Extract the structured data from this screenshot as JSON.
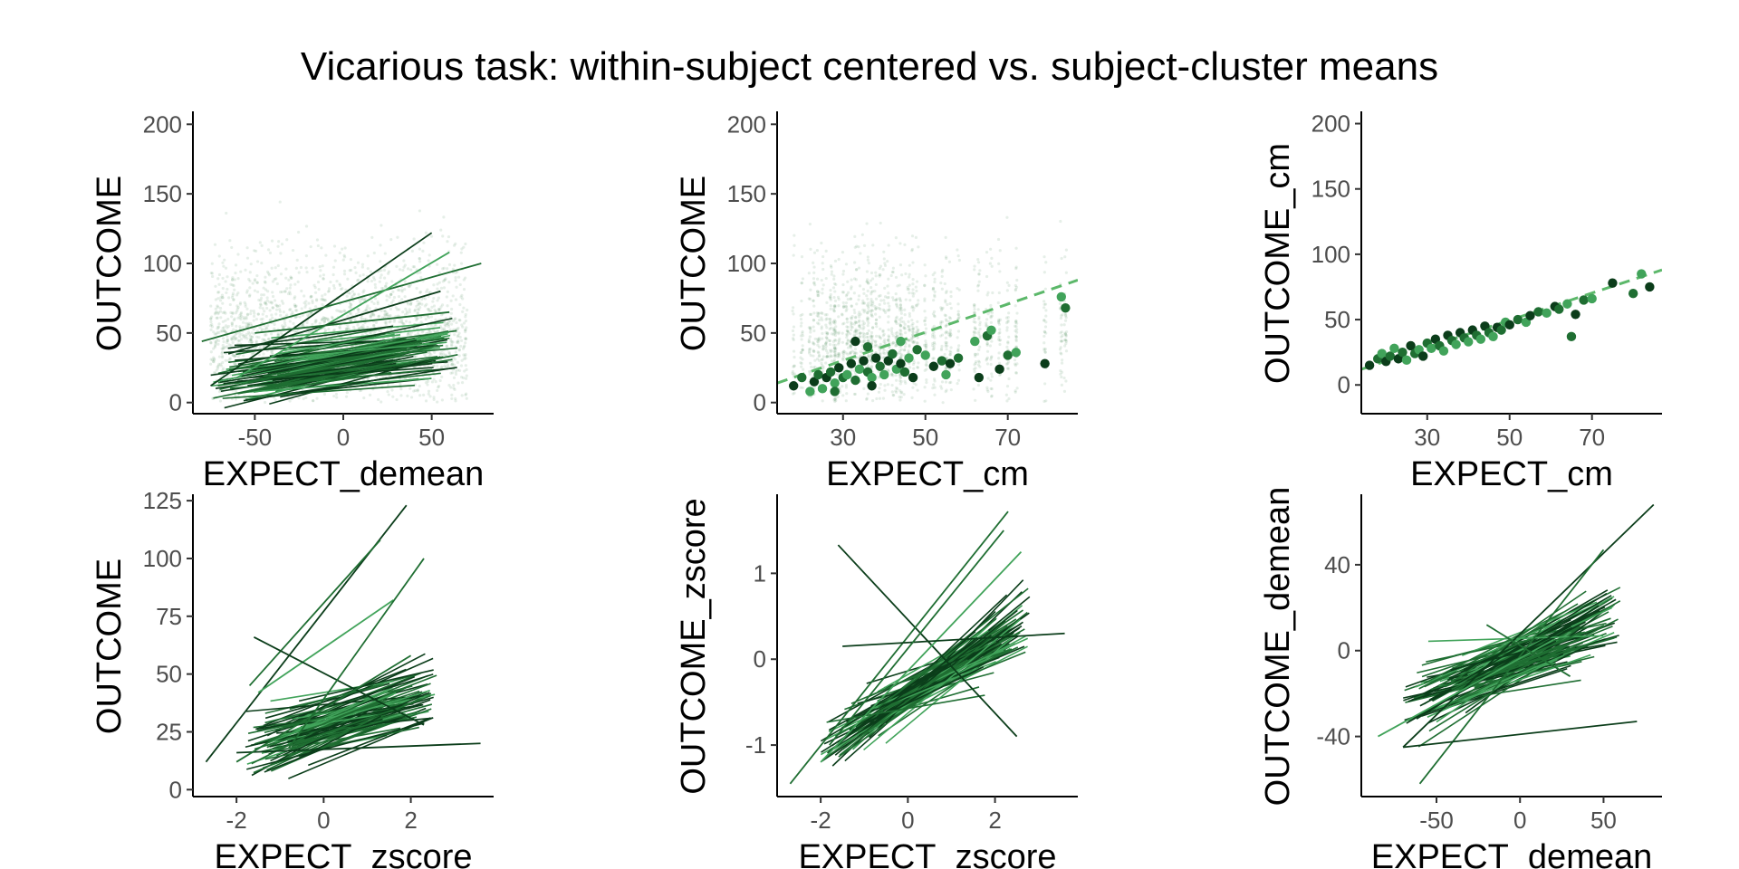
{
  "title": "Vicarious task: within-subject centered vs. subject-cluster means",
  "colors": {
    "dark": "#0b3d1a",
    "mid": "#1f6e32",
    "light": "#41a35a",
    "points": "#2e7d3f",
    "dashed": "#5cb86a"
  },
  "chart_data": [
    {
      "panel": "top-left",
      "type": "scatter",
      "xlabel": "EXPECT_demean",
      "ylabel": "OUTCOME",
      "xlim": [
        -85,
        85
      ],
      "ylim": [
        -8,
        208
      ],
      "xticks": [
        -50,
        0,
        50
      ],
      "yticks": [
        0,
        50,
        100,
        150,
        200
      ],
      "overlay": "subject-regression-lines",
      "subject_lines": [
        {
          "x": [
            -75,
            50
          ],
          "y": [
            12,
            122
          ]
        },
        {
          "x": [
            -80,
            78
          ],
          "y": [
            44,
            100
          ]
        },
        {
          "x": [
            -60,
            60
          ],
          "y": [
            18,
            108
          ]
        },
        {
          "x": [
            -65,
            55
          ],
          "y": [
            35,
            80
          ]
        },
        {
          "x": [
            -50,
            60
          ],
          "y": [
            50,
            65
          ]
        }
      ],
      "line_cloud": {
        "count": 90,
        "x_range": [
          -75,
          65
        ],
        "y_center": 28,
        "y_spread": 16,
        "slope_mean": 0.2,
        "slope_sd": 0.12
      },
      "point_cloud": {
        "count": 2200,
        "x_range": [
          -75,
          70
        ],
        "y_range": [
          0,
          170
        ]
      }
    },
    {
      "panel": "top-middle",
      "type": "scatter",
      "xlabel": "EXPECT_cm",
      "ylabel": "OUTCOME",
      "xlim": [
        14,
        87
      ],
      "ylim": [
        -8,
        208
      ],
      "xticks": [
        30,
        50,
        70
      ],
      "yticks": [
        0,
        50,
        100,
        150,
        200
      ],
      "trend": {
        "style": "dashed",
        "x": [
          14,
          87
        ],
        "y": [
          14,
          88
        ]
      },
      "cluster_means": [
        [
          18,
          12
        ],
        [
          20,
          18
        ],
        [
          22,
          8
        ],
        [
          23,
          15
        ],
        [
          24,
          20
        ],
        [
          25,
          10
        ],
        [
          26,
          18
        ],
        [
          27,
          22
        ],
        [
          28,
          14
        ],
        [
          29,
          25
        ],
        [
          30,
          18
        ],
        [
          31,
          20
        ],
        [
          32,
          28
        ],
        [
          33,
          16
        ],
        [
          34,
          24
        ],
        [
          35,
          30
        ],
        [
          36,
          22
        ],
        [
          37,
          18
        ],
        [
          38,
          32
        ],
        [
          39,
          26
        ],
        [
          40,
          20
        ],
        [
          41,
          30
        ],
        [
          42,
          35
        ],
        [
          43,
          24
        ],
        [
          44,
          28
        ],
        [
          45,
          22
        ],
        [
          46,
          32
        ],
        [
          47,
          18
        ],
        [
          48,
          38
        ],
        [
          50,
          34
        ],
        [
          52,
          26
        ],
        [
          54,
          30
        ],
        [
          55,
          20
        ],
        [
          56,
          28
        ],
        [
          58,
          32
        ],
        [
          62,
          44
        ],
        [
          63,
          18
        ],
        [
          65,
          48
        ],
        [
          66,
          52
        ],
        [
          68,
          24
        ],
        [
          70,
          34
        ],
        [
          72,
          36
        ],
        [
          79,
          28
        ],
        [
          84,
          68
        ],
        [
          83,
          76
        ],
        [
          33,
          44
        ],
        [
          36,
          40
        ],
        [
          44,
          44
        ],
        [
          37,
          12
        ],
        [
          28,
          8
        ]
      ],
      "point_cloud": {
        "count": 1600,
        "x_range": [
          16,
          85
        ],
        "y_range": [
          0,
          175
        ]
      }
    },
    {
      "panel": "top-right",
      "type": "scatter",
      "xlabel": "EXPECT_cm",
      "ylabel": "OUTCOME_cm",
      "xlim": [
        14,
        87
      ],
      "ylim": [
        -22,
        208
      ],
      "xticks": [
        30,
        50,
        70
      ],
      "yticks": [
        0,
        50,
        100,
        150,
        200
      ],
      "trend": {
        "style": "dashed",
        "x": [
          14,
          87
        ],
        "y": [
          12,
          88
        ]
      },
      "cluster_means": [
        [
          16,
          15
        ],
        [
          18,
          20
        ],
        [
          19,
          24
        ],
        [
          20,
          18
        ],
        [
          21,
          22
        ],
        [
          22,
          28
        ],
        [
          23,
          20
        ],
        [
          24,
          25
        ],
        [
          25,
          19
        ],
        [
          26,
          30
        ],
        [
          27,
          24
        ],
        [
          28,
          27
        ],
        [
          29,
          22
        ],
        [
          30,
          32
        ],
        [
          31,
          28
        ],
        [
          32,
          35
        ],
        [
          33,
          30
        ],
        [
          34,
          26
        ],
        [
          35,
          38
        ],
        [
          36,
          34
        ],
        [
          37,
          31
        ],
        [
          38,
          40
        ],
        [
          39,
          36
        ],
        [
          40,
          33
        ],
        [
          41,
          42
        ],
        [
          42,
          38
        ],
        [
          43,
          35
        ],
        [
          44,
          45
        ],
        [
          45,
          40
        ],
        [
          46,
          37
        ],
        [
          47,
          44
        ],
        [
          48,
          42
        ],
        [
          49,
          48
        ],
        [
          50,
          46
        ],
        [
          52,
          50
        ],
        [
          54,
          48
        ],
        [
          55,
          53
        ],
        [
          57,
          56
        ],
        [
          59,
          55
        ],
        [
          61,
          60
        ],
        [
          62,
          58
        ],
        [
          64,
          62
        ],
        [
          66,
          54
        ],
        [
          68,
          65
        ],
        [
          70,
          66
        ],
        [
          75,
          78
        ],
        [
          80,
          70
        ],
        [
          82,
          85
        ],
        [
          84,
          75
        ],
        [
          65,
          37
        ]
      ]
    },
    {
      "panel": "bottom-left",
      "type": "line",
      "xlabel": "EXPECT_zscore",
      "ylabel": "OUTCOME",
      "xlim": [
        -3.0,
        3.9
      ],
      "ylim": [
        -3,
        127
      ],
      "xticks": [
        -2,
        0,
        2
      ],
      "yticks": [
        0,
        25,
        50,
        75,
        100,
        125
      ],
      "subject_lines": [
        {
          "x": [
            -2.7,
            1.9
          ],
          "y": [
            12,
            123
          ]
        },
        {
          "x": [
            -1.7,
            1.3
          ],
          "y": [
            45,
            108
          ]
        },
        {
          "x": [
            -1.5,
            1.6
          ],
          "y": [
            42,
            82
          ]
        },
        {
          "x": [
            -1.6,
            2.3
          ],
          "y": [
            66,
            28
          ]
        },
        {
          "x": [
            -0.8,
            2.3
          ],
          "y": [
            18,
            100
          ]
        },
        {
          "x": [
            -2.0,
            3.6
          ],
          "y": [
            16,
            20
          ]
        },
        {
          "x": [
            -2.0,
            2.0
          ],
          "y": [
            12,
            58
          ]
        }
      ],
      "line_cloud": {
        "count": 90,
        "x_range": [
          -1.8,
          2.6
        ],
        "y_center": 30,
        "y_spread": 10,
        "slope_mean": 6,
        "slope_sd": 3.5
      }
    },
    {
      "panel": "bottom-middle",
      "type": "line",
      "xlabel": "EXPECT_zscore",
      "ylabel": "OUTCOME_zscore",
      "xlim": [
        -3.0,
        3.9
      ],
      "ylim": [
        -1.6,
        1.9
      ],
      "xticks": [
        -2,
        0,
        2
      ],
      "yticks": [
        -1,
        0,
        1
      ],
      "subject_lines": [
        {
          "x": [
            -1.6,
            2.5
          ],
          "y": [
            1.33,
            -0.9
          ]
        },
        {
          "x": [
            -2.7,
            2.3
          ],
          "y": [
            -1.45,
            1.72
          ]
        },
        {
          "x": [
            -2.0,
            2.6
          ],
          "y": [
            -1.2,
            1.25
          ]
        },
        {
          "x": [
            -1.5,
            3.6
          ],
          "y": [
            0.15,
            0.3
          ]
        },
        {
          "x": [
            -1.8,
            2.2
          ],
          "y": [
            -1.0,
            1.5
          ]
        }
      ],
      "line_cloud": {
        "count": 95,
        "x_range": [
          -2.0,
          2.8
        ],
        "y_center": -0.3,
        "y_spread": 0.18,
        "slope_mean": 0.32,
        "slope_sd": 0.15
      }
    },
    {
      "panel": "bottom-right",
      "type": "line",
      "xlabel": "EXPECT_demean",
      "ylabel": "OUTCOME_demean",
      "xlim": [
        -95,
        85
      ],
      "ylim": [
        -68,
        72
      ],
      "xticks": [
        -50,
        0,
        50
      ],
      "yticks": [
        -40,
        0,
        40
      ],
      "subject_lines": [
        {
          "x": [
            -70,
            80
          ],
          "y": [
            -45,
            68
          ]
        },
        {
          "x": [
            -60,
            50
          ],
          "y": [
            -62,
            47
          ]
        },
        {
          "x": [
            -85,
            20
          ],
          "y": [
            -40,
            5
          ]
        },
        {
          "x": [
            -70,
            70
          ],
          "y": [
            -45,
            -33
          ]
        },
        {
          "x": [
            -20,
            30
          ],
          "y": [
            12,
            -12
          ]
        }
      ],
      "line_cloud": {
        "count": 95,
        "x_range": [
          -70,
          60
        ],
        "y_center": -5,
        "y_spread": 10,
        "slope_mean": 0.32,
        "slope_sd": 0.18
      }
    }
  ]
}
